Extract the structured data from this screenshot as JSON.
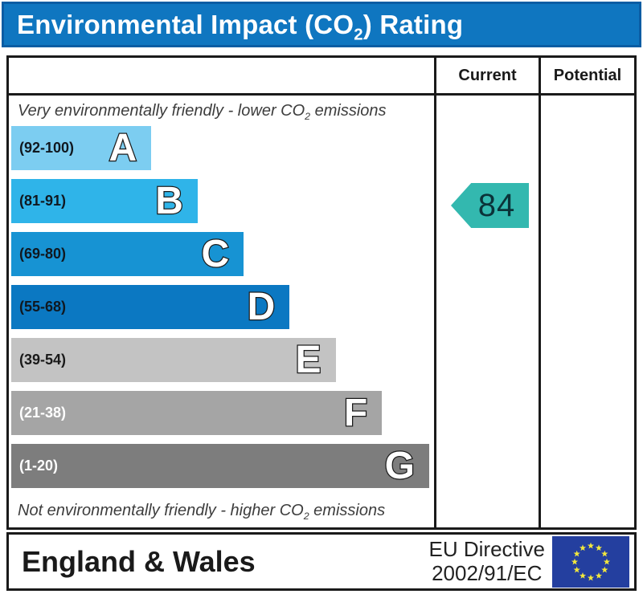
{
  "title": {
    "pre": "Environmental Impact (CO",
    "sub": "2",
    "post": ") Rating"
  },
  "header": {
    "current": "Current",
    "potential": "Potential"
  },
  "notes": {
    "top": {
      "pre": "Very environmentally friendly - lower CO",
      "sub": "2",
      "post": " emissions"
    },
    "bottom": {
      "pre": "Not environmentally friendly - higher CO",
      "sub": "2",
      "post": " emissions"
    }
  },
  "table": {
    "bands": [
      {
        "letter": "A",
        "range": "(92-100)",
        "color": "#7ccdf1",
        "label_color": "#101820",
        "width_pct": 33.5
      },
      {
        "letter": "B",
        "range": "(81-91)",
        "color": "#2fb4e9",
        "label_color": "#101820",
        "width_pct": 44.6
      },
      {
        "letter": "C",
        "range": "(69-80)",
        "color": "#1793d3",
        "label_color": "#101820",
        "width_pct": 55.6
      },
      {
        "letter": "D",
        "range": "(55-68)",
        "color": "#0b78c2",
        "label_color": "#101820",
        "width_pct": 66.6
      },
      {
        "letter": "E",
        "range": "(39-54)",
        "color": "#c3c3c3",
        "label_color": "#1a1a1a",
        "width_pct": 77.6
      },
      {
        "letter": "F",
        "range": "(21-38)",
        "color": "#a5a5a5",
        "label_color": "#ffffff",
        "width_pct": 88.7
      },
      {
        "letter": "G",
        "range": "(1-20)",
        "color": "#7d7d7d",
        "label_color": "#ffffff",
        "width_pct": 100
      }
    ]
  },
  "current_rating": {
    "value": "84",
    "band": "B",
    "color": "#33b8af"
  },
  "footer": {
    "region": "England & Wales",
    "directive_line1": "EU Directive",
    "directive_line2": "2002/91/EC",
    "flag": {
      "icon": "eu-flag-icon",
      "background": "#243f9f",
      "star_color": "#f1e73e"
    }
  },
  "colors": {
    "title_bar_bg": "#0f76c0",
    "title_bar_border": "#0a5da3",
    "table_border": "#1a1a1a"
  },
  "chart_data": {
    "type": "bar",
    "title": "Environmental Impact (CO2) Rating",
    "categories": [
      "A",
      "B",
      "C",
      "D",
      "E",
      "F",
      "G"
    ],
    "ranges": [
      "92-100",
      "81-91",
      "69-80",
      "55-68",
      "39-54",
      "21-38",
      "1-20"
    ],
    "bar_relative_widths_pct": [
      33.5,
      44.6,
      55.6,
      66.6,
      77.6,
      88.7,
      100
    ],
    "bar_colors": [
      "#7ccdf1",
      "#2fb4e9",
      "#1793d3",
      "#0b78c2",
      "#c3c3c3",
      "#a5a5a5",
      "#7d7d7d"
    ],
    "annotation_top": "Very environmentally friendly - lower CO2 emissions",
    "annotation_bottom": "Not environmentally friendly - higher CO2 emissions",
    "columns": [
      "Current",
      "Potential"
    ],
    "current": {
      "value": 84,
      "band": "B"
    },
    "potential": null,
    "footer_region": "England & Wales",
    "footer_directive": "EU Directive 2002/91/EC",
    "legend_position": "none",
    "grid": false
  }
}
